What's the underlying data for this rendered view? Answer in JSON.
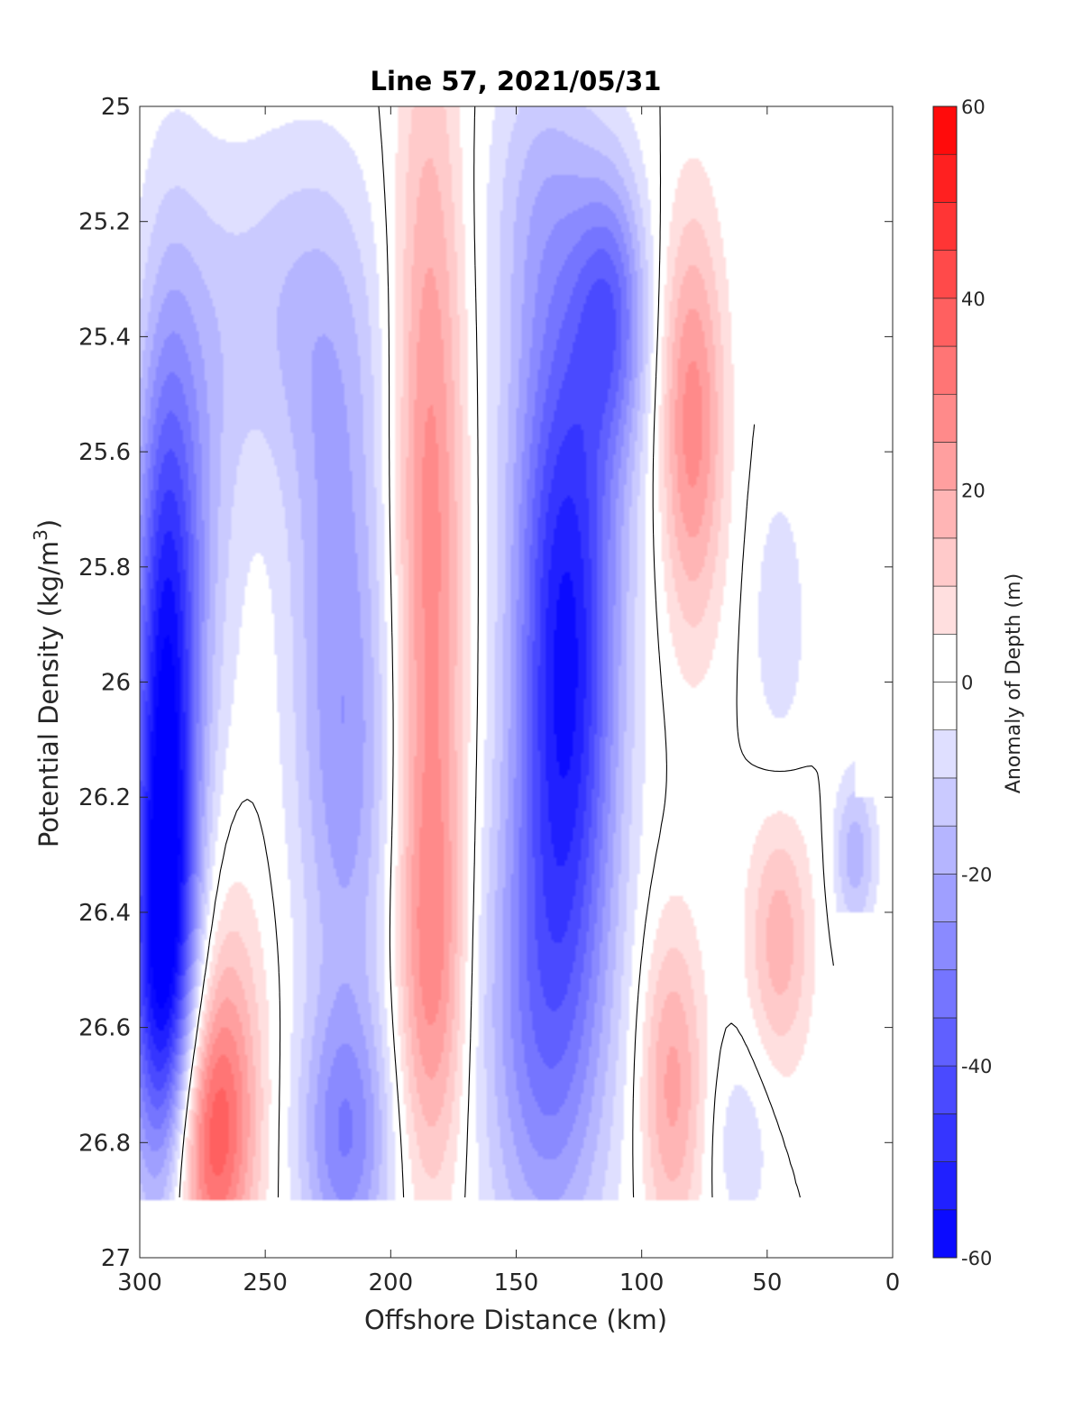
{
  "chart_data": {
    "type": "heatmap",
    "title": "Line 57, 2021/05/31",
    "xlabel": "Offshore Distance (km)",
    "ylabel_main": "Potential Density (kg/m",
    "ylabel_sup": "3",
    "ylabel_close": ")",
    "xlim": [
      300,
      0
    ],
    "ylim": [
      25,
      27
    ],
    "x_reversed": true,
    "y_reversed": true,
    "xticks": [
      300,
      250,
      200,
      150,
      100,
      50,
      0
    ],
    "yticks": [
      25,
      25.2,
      25.4,
      25.6,
      25.8,
      26,
      26.2,
      26.4,
      26.6,
      26.8,
      27
    ],
    "ytick_labels": [
      "25",
      "25.2",
      "25.4",
      "25.6",
      "25.8",
      "26",
      "26.2",
      "26.4",
      "26.6",
      "26.8",
      "27"
    ],
    "grid": false,
    "data_sigma_range": [
      25,
      26.9
    ],
    "colorbar": {
      "label": "Anomaly of Depth (m)",
      "range": [
        -60,
        60
      ],
      "step": 5,
      "ticks": [
        60,
        40,
        20,
        0,
        -20,
        -40,
        -60
      ],
      "tick_labels": [
        "60",
        "40",
        "20",
        "0",
        "-20",
        "-40",
        "-60"
      ],
      "colormap": "blue-white-red",
      "low_color": "#0000ff",
      "mid_color": "#ffffff",
      "high_color": "#ff0000"
    },
    "features": [
      {
        "kind": "negative",
        "x": 290,
        "sigma": 26.1,
        "peak": -55,
        "sx": 9,
        "ss": 0.45
      },
      {
        "kind": "negative",
        "x": 290,
        "sigma": 26.55,
        "peak": -35,
        "sx": 11,
        "ss": 0.25
      },
      {
        "kind": "negative",
        "x": 278,
        "sigma": 25.7,
        "peak": -15,
        "sx": 12,
        "ss": 0.35
      },
      {
        "kind": "positive",
        "x": 272,
        "sigma": 26.8,
        "peak": 38,
        "sx": 12,
        "ss": 0.18
      },
      {
        "kind": "positive",
        "x": 268,
        "sigma": 26.55,
        "peak": 12,
        "sx": 13,
        "ss": 0.2
      },
      {
        "kind": "negative",
        "x": 240,
        "sigma": 25.35,
        "peak": -13,
        "sx": 25,
        "ss": 0.22
      },
      {
        "kind": "negative",
        "x": 222,
        "sigma": 25.7,
        "peak": -15,
        "sx": 14,
        "ss": 0.3
      },
      {
        "kind": "negative",
        "x": 218,
        "sigma": 26.2,
        "peak": -20,
        "sx": 14,
        "ss": 0.3
      },
      {
        "kind": "negative",
        "x": 218,
        "sigma": 26.8,
        "peak": -28,
        "sx": 13,
        "ss": 0.18
      },
      {
        "kind": "positive",
        "x": 185,
        "sigma": 25.35,
        "peak": 18,
        "sx": 10,
        "ss": 0.4
      },
      {
        "kind": "positive",
        "x": 184,
        "sigma": 25.9,
        "peak": 18,
        "sx": 10,
        "ss": 0.35
      },
      {
        "kind": "positive",
        "x": 184,
        "sigma": 26.5,
        "peak": 26,
        "sx": 10,
        "ss": 0.28
      },
      {
        "kind": "negative",
        "x": 130,
        "sigma": 26.05,
        "peak": -42,
        "sx": 14,
        "ss": 0.32
      },
      {
        "kind": "negative",
        "x": 130,
        "sigma": 25.6,
        "peak": -28,
        "sx": 17,
        "ss": 0.3
      },
      {
        "kind": "negative",
        "x": 138,
        "sigma": 26.6,
        "peak": -30,
        "sx": 18,
        "ss": 0.32
      },
      {
        "kind": "negative",
        "x": 112,
        "sigma": 25.35,
        "peak": -27,
        "sx": 10,
        "ss": 0.17
      },
      {
        "kind": "negative",
        "x": 140,
        "sigma": 25.15,
        "peak": -12,
        "sx": 15,
        "ss": 0.2
      },
      {
        "kind": "positive",
        "x": 80,
        "sigma": 25.55,
        "peak": 28,
        "sx": 9,
        "ss": 0.25
      },
      {
        "kind": "positive",
        "x": 88,
        "sigma": 26.7,
        "peak": 22,
        "sx": 9,
        "ss": 0.2
      },
      {
        "kind": "positive",
        "x": 45,
        "sigma": 26.45,
        "peak": 18,
        "sx": 9,
        "ss": 0.16
      },
      {
        "kind": "negative",
        "x": 45,
        "sigma": 25.9,
        "peak": -9,
        "sx": 8,
        "ss": 0.18
      },
      {
        "kind": "negative",
        "x": 60,
        "sigma": 26.8,
        "peak": -9,
        "sx": 9,
        "ss": 0.12
      },
      {
        "kind": "negative",
        "x": 15,
        "sigma": 26.3,
        "peak": -18,
        "sx": 6,
        "ss": 0.1
      }
    ]
  }
}
